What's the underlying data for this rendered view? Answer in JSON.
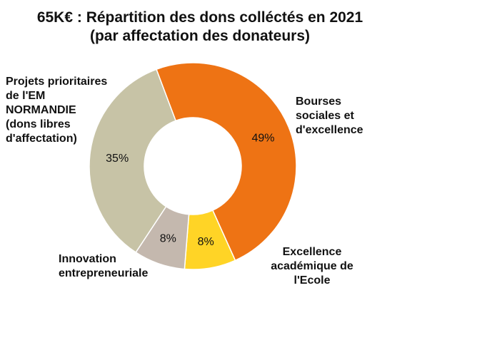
{
  "chart_data": {
    "type": "pie",
    "donut": true,
    "title": "65K€ : Répartition des dons colléctés en 2021",
    "subtitle": "(par affectation des donateurs)",
    "start_angle_deg": -20.6,
    "slices": [
      {
        "label": "Bourses sociales et d'excellence",
        "lines": [
          "Bourses",
          "sociales et",
          "d'excellence"
        ],
        "value": 49,
        "value_label": "49%",
        "color": "#EE7314"
      },
      {
        "label": "Excellence académique de l'Ecole",
        "lines": [
          "Excellence",
          "académique de",
          "l'Ecole"
        ],
        "value": 8,
        "value_label": "8%",
        "color": "#FFD426"
      },
      {
        "label": "Innovation entrepreneuriale",
        "lines": [
          "Innovation",
          "entrepreneuriale"
        ],
        "value": 8,
        "value_label": "8%",
        "color": "#C4B8AE"
      },
      {
        "label": "Projets prioritaires de l'EM NORMANDIE (dons libres d'affectation)",
        "lines": [
          "Projets prioritaires",
          "de l'EM",
          "NORMANDIE",
          "(dons libres",
          "d'affectation)"
        ],
        "value": 35,
        "value_label": "35%",
        "color": "#C7C3A6"
      }
    ]
  }
}
